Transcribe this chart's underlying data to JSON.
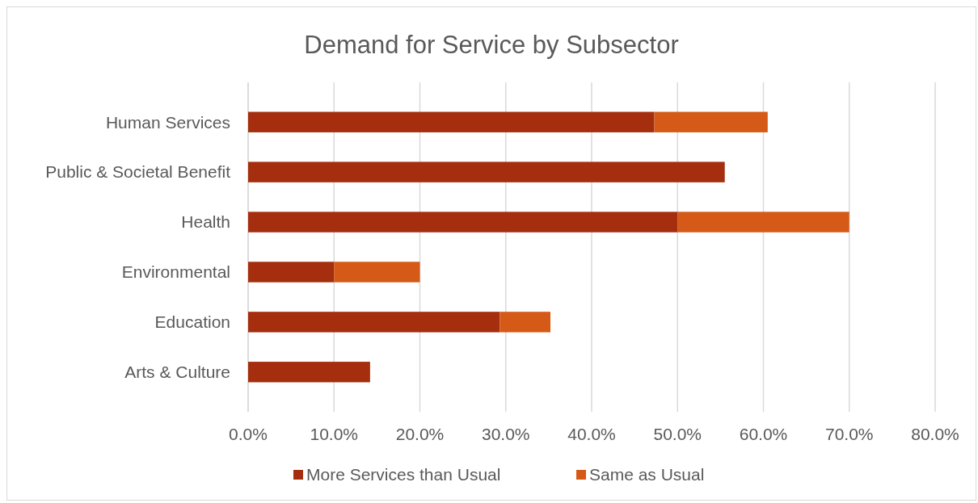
{
  "chart_data": {
    "type": "bar",
    "orientation": "horizontal",
    "stacked": true,
    "title": "Demand for Service by Subsector",
    "categories": [
      "Human Services",
      "Public & Societal Benefit",
      "Health",
      "Environmental",
      "Education",
      "Arts & Culture"
    ],
    "series": [
      {
        "name": "More Services than Usual",
        "color": "#a52e0f",
        "values": [
          47.3,
          55.5,
          50.0,
          10.0,
          29.3,
          14.2
        ]
      },
      {
        "name": "Same as Usual",
        "color": "#d55a17",
        "values": [
          13.2,
          null,
          20.0,
          10.0,
          5.9,
          null
        ]
      }
    ],
    "xlim": [
      0,
      80
    ],
    "xticks": [
      {
        "value": 0,
        "label": "0.0%"
      },
      {
        "value": 10,
        "label": "10.0%"
      },
      {
        "value": 20,
        "label": "20.0%"
      },
      {
        "value": 30,
        "label": "30.0%"
      },
      {
        "value": 40,
        "label": "40.0%"
      },
      {
        "value": 50,
        "label": "50.0%"
      },
      {
        "value": 60,
        "label": "60.0%"
      },
      {
        "value": 70,
        "label": "70.0%"
      },
      {
        "value": 80,
        "label": "80.0%"
      }
    ],
    "grid": "x",
    "legend": "bottom"
  }
}
